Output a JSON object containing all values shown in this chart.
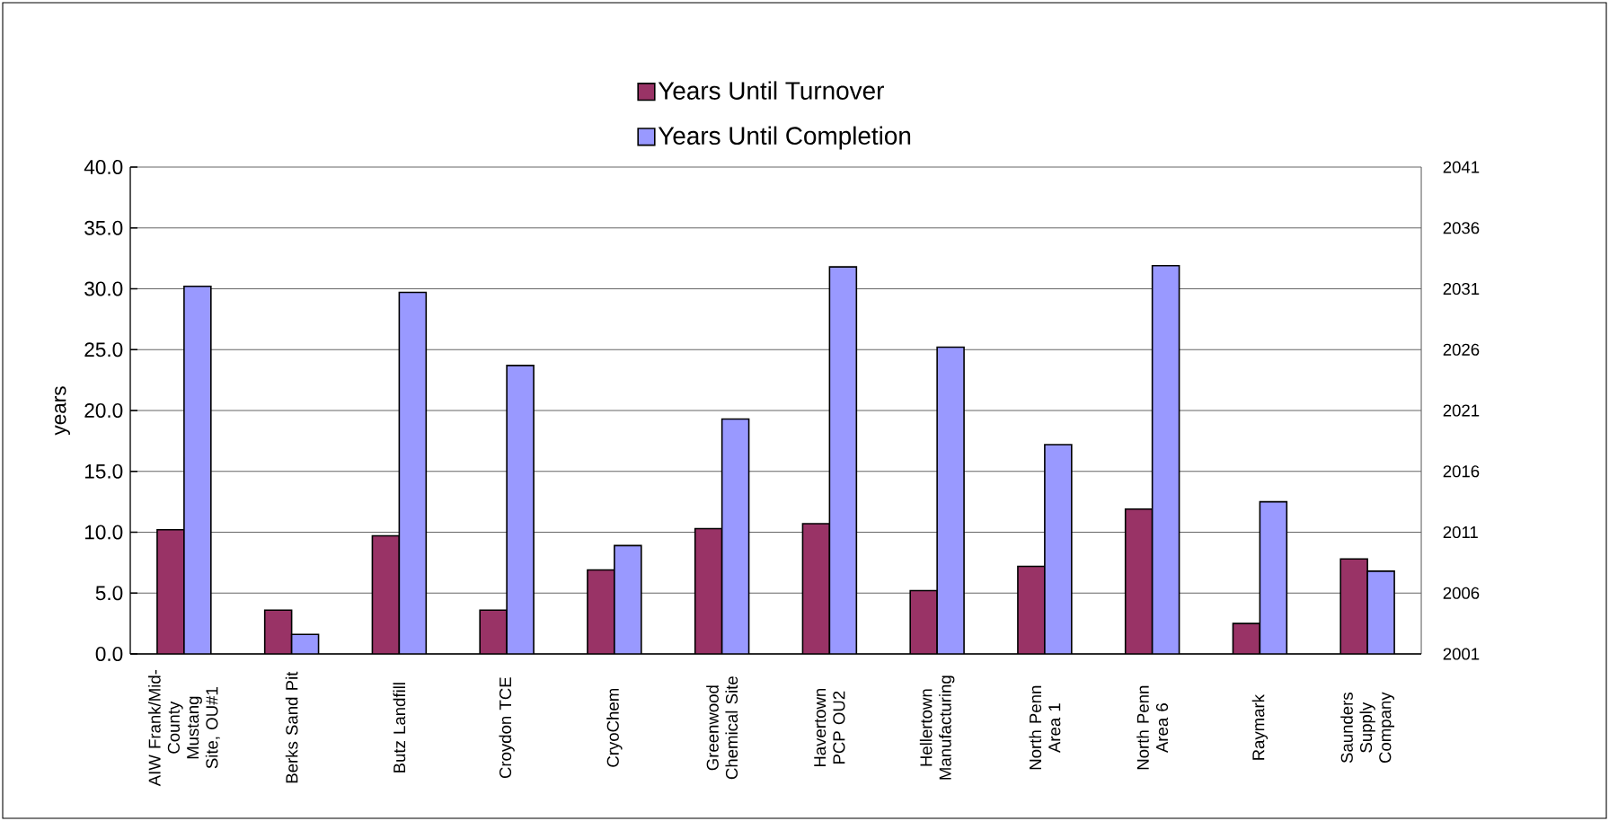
{
  "chart_data": {
    "type": "bar",
    "ylabel": "years",
    "categories": [
      "AIW Frank/Mid-County Mustang Site, OU#1",
      "Berks Sand Pit",
      "Butz Landfill",
      "Croydon TCE",
      "CryoChem",
      "Greenwood Chemical Site",
      "Havertown PCP OU2",
      "Hellertown Manufacturing",
      "North Penn Area 1",
      "North Penn Area 6",
      "Raymark",
      "Saunders Supply Company"
    ],
    "series": [
      {
        "name": "Years Until Turnover",
        "color": "#993366",
        "values": [
          10.2,
          3.6,
          9.7,
          3.6,
          6.9,
          10.3,
          10.7,
          5.2,
          7.2,
          11.9,
          2.5,
          7.8
        ]
      },
      {
        "name": "Years Until Completion",
        "color": "#9999ff",
        "values": [
          30.2,
          1.6,
          29.7,
          23.7,
          8.9,
          19.3,
          31.8,
          25.2,
          17.2,
          31.9,
          12.5,
          6.8
        ]
      }
    ],
    "ylim": [
      0,
      40
    ],
    "yticks": [
      {
        "value": 0,
        "label": "0.0"
      },
      {
        "value": 5,
        "label": "5.0"
      },
      {
        "value": 10,
        "label": "10.0"
      },
      {
        "value": 15,
        "label": "15.0"
      },
      {
        "value": 20,
        "label": "20.0"
      },
      {
        "value": 25,
        "label": "25.0"
      },
      {
        "value": 30,
        "label": "30.0"
      },
      {
        "value": 35,
        "label": "35.0"
      },
      {
        "value": 40,
        "label": "40.0"
      }
    ],
    "y2lim": [
      2001,
      2041
    ],
    "y2ticks": [
      2001,
      2006,
      2011,
      2016,
      2021,
      2026,
      2031,
      2036,
      2041
    ],
    "grid": "y",
    "legend": "top"
  }
}
